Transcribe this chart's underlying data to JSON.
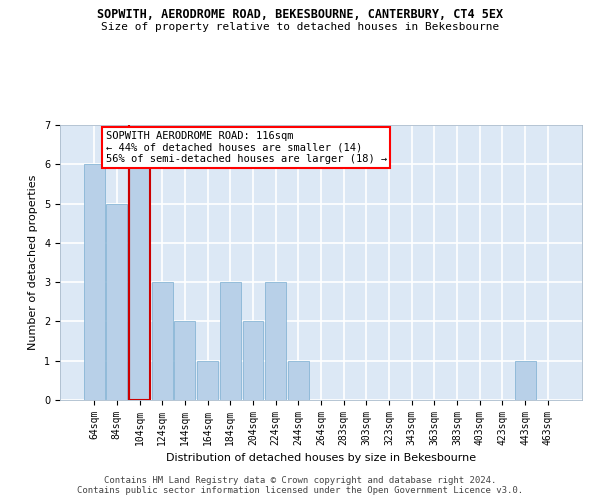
{
  "title": "SOPWITH, AERODROME ROAD, BEKESBOURNE, CANTERBURY, CT4 5EX",
  "subtitle": "Size of property relative to detached houses in Bekesbourne",
  "xlabel": "Distribution of detached houses by size in Bekesbourne",
  "ylabel": "Number of detached properties",
  "categories": [
    "64sqm",
    "84sqm",
    "104sqm",
    "124sqm",
    "144sqm",
    "164sqm",
    "184sqm",
    "204sqm",
    "224sqm",
    "244sqm",
    "264sqm",
    "283sqm",
    "303sqm",
    "323sqm",
    "343sqm",
    "363sqm",
    "383sqm",
    "403sqm",
    "423sqm",
    "443sqm",
    "463sqm"
  ],
  "values": [
    6,
    5,
    6,
    3,
    2,
    1,
    3,
    2,
    3,
    1,
    0,
    0,
    0,
    0,
    0,
    0,
    0,
    0,
    0,
    1,
    0
  ],
  "bar_color": "#b8d0e8",
  "bar_edge_color": "#7aaed0",
  "highlight_index": 2,
  "highlight_edge_color": "#cc0000",
  "annotation_text": "SOPWITH AERODROME ROAD: 116sqm\n← 44% of detached houses are smaller (14)\n56% of semi-detached houses are larger (18) →",
  "ylim": [
    0,
    7
  ],
  "yticks": [
    0,
    1,
    2,
    3,
    4,
    5,
    6,
    7
  ],
  "background_color": "#dce8f5",
  "plot_bg_color": "#dce8f5",
  "grid_color": "#ffffff",
  "footer": "Contains HM Land Registry data © Crown copyright and database right 2024.\nContains public sector information licensed under the Open Government Licence v3.0.",
  "title_fontsize": 8.5,
  "subtitle_fontsize": 8,
  "xlabel_fontsize": 8,
  "ylabel_fontsize": 8,
  "annotation_fontsize": 7.5,
  "footer_fontsize": 6.5,
  "tick_fontsize": 7
}
